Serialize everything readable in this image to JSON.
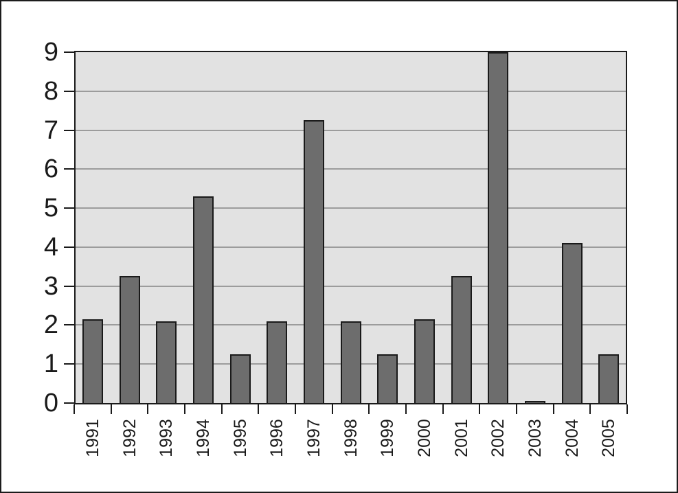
{
  "page": {
    "background": "#ffffff",
    "frame_color": "#1c1c1c"
  },
  "chart_data": {
    "type": "bar",
    "title": "",
    "xlabel": "",
    "ylabel": "",
    "categories": [
      "1991",
      "1992",
      "1993",
      "1994",
      "1995",
      "1996",
      "1997",
      "1998",
      "1999",
      "2000",
      "2001",
      "2002",
      "2003",
      "2004",
      "2005"
    ],
    "values": [
      2.15,
      3.25,
      2.1,
      5.3,
      1.25,
      2.1,
      7.25,
      2.1,
      1.25,
      2.15,
      3.25,
      9,
      0.05,
      4.1,
      1.25
    ],
    "ylim": [
      0,
      9
    ],
    "ytick_interval": 1,
    "ytick_labels": [
      "0",
      "1",
      "2",
      "3",
      "4",
      "5",
      "6",
      "7",
      "8",
      "9"
    ],
    "grid": "horizontal",
    "legend": "none",
    "colors": {
      "bar_fill": "#6d6d6d",
      "bar_border": "#1a1a1a",
      "plot_background": "#e2e2e2",
      "gridline": "#9c9c9c",
      "axis": "#1a1a1a"
    }
  }
}
